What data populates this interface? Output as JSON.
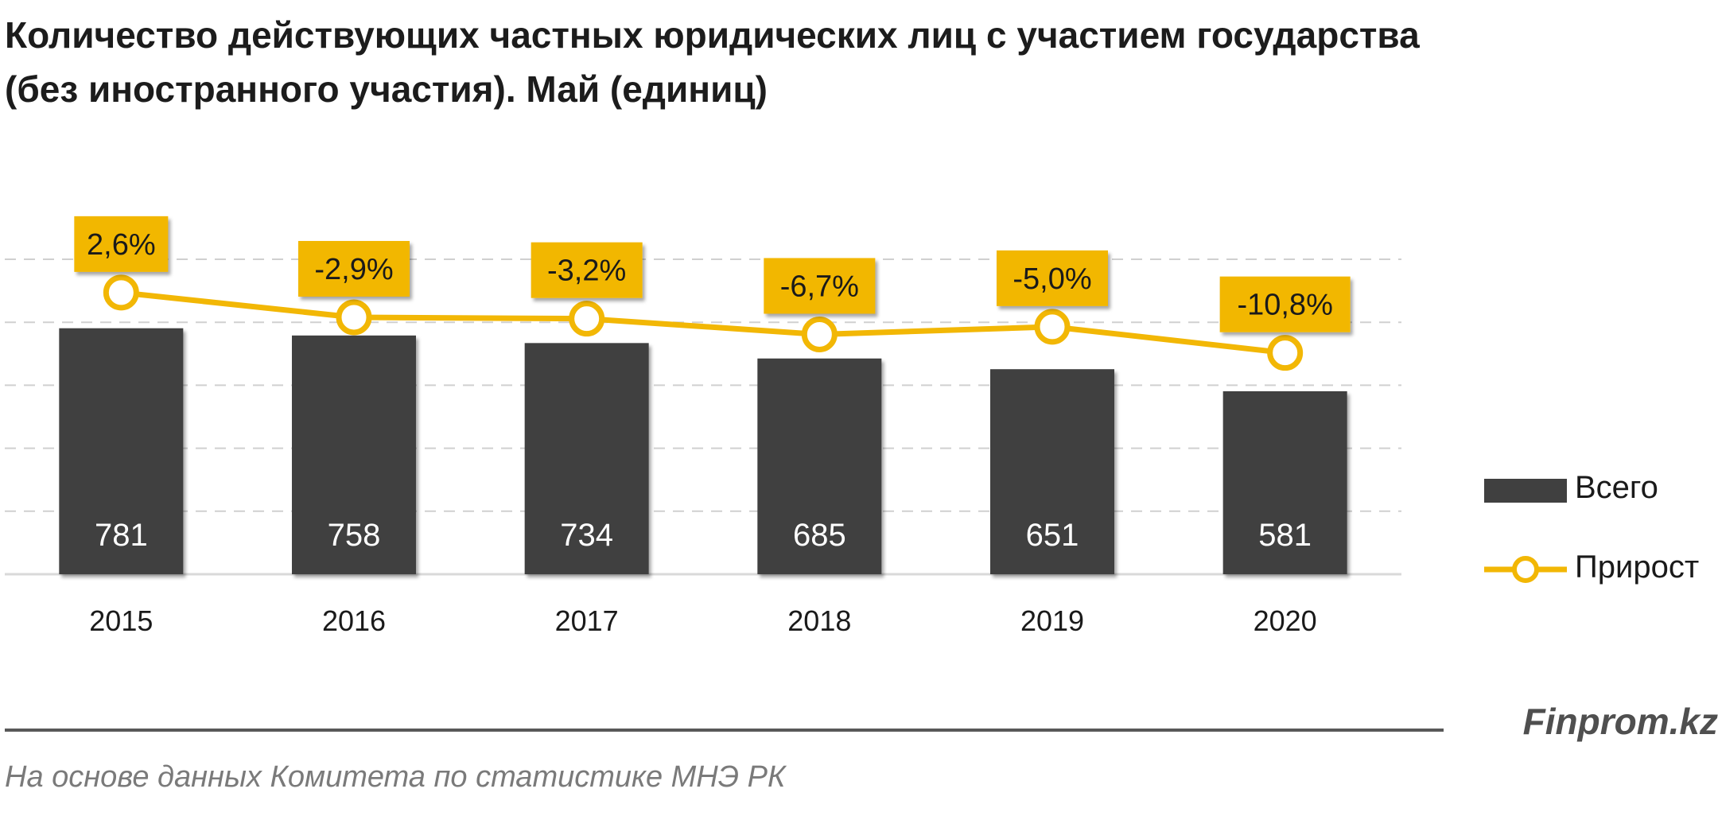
{
  "chart_data": {
    "type": "bar",
    "title_line1": "Количество действующих частных юридических лиц с участием государства",
    "title_line2": "(без иностранного участия). Май (единиц)",
    "categories": [
      "2015",
      "2016",
      "2017",
      "2018",
      "2019",
      "2020"
    ],
    "series": [
      {
        "name": "Всего",
        "type": "bar",
        "color": "#404040",
        "values": [
          781,
          758,
          734,
          685,
          651,
          581
        ],
        "labels": [
          "781",
          "758",
          "734",
          "685",
          "651",
          "581"
        ]
      },
      {
        "name": "Прирост",
        "type": "line",
        "color": "#f2b705",
        "values": [
          2.6,
          -2.9,
          -3.2,
          -6.7,
          -5.0,
          -10.8
        ],
        "labels": [
          "2,6%",
          "-2,9%",
          "-3,2%",
          "-6,7%",
          "-5,0%",
          "-10,8%"
        ]
      }
    ],
    "ylim": [
      0,
      1000
    ],
    "y2lim": [
      -60,
      10
    ],
    "grid": true,
    "legend_position": "right"
  },
  "footer": {
    "source": "На основе данных Комитета по статистике МНЭ РК",
    "watermark": "Finprom.kz"
  }
}
